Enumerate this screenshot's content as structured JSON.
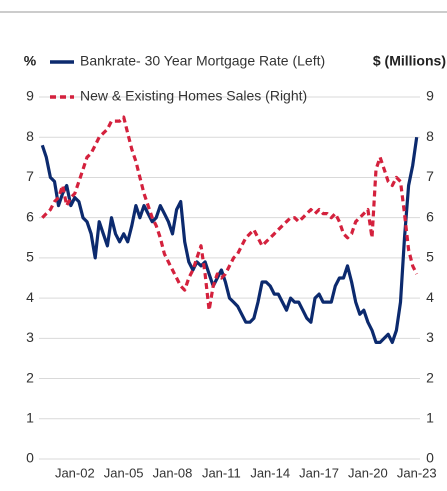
{
  "chart_data": {
    "type": "line",
    "y_label": "%",
    "y2_label": "$ (Millions)",
    "x": [
      2000,
      2000.25,
      2000.5,
      2000.75,
      2001,
      2001.25,
      2001.5,
      2001.75,
      2002,
      2002.25,
      2002.5,
      2002.75,
      2003,
      2003.25,
      2003.5,
      2003.75,
      2004,
      2004.25,
      2004.5,
      2004.75,
      2005,
      2005.25,
      2005.5,
      2005.75,
      2006,
      2006.25,
      2006.5,
      2006.75,
      2007,
      2007.25,
      2007.5,
      2007.75,
      2008,
      2008.25,
      2008.5,
      2008.75,
      2009,
      2009.25,
      2009.5,
      2009.75,
      2010,
      2010.25,
      2010.5,
      2010.75,
      2011,
      2011.25,
      2011.5,
      2011.75,
      2012,
      2012.25,
      2012.5,
      2012.75,
      2013,
      2013.25,
      2013.5,
      2013.75,
      2014,
      2014.25,
      2014.5,
      2014.75,
      2015,
      2015.25,
      2015.5,
      2015.75,
      2016,
      2016.25,
      2016.5,
      2016.75,
      2017,
      2017.25,
      2017.5,
      2017.75,
      2018,
      2018.25,
      2018.5,
      2018.75,
      2019,
      2019.25,
      2019.5,
      2019.75,
      2020,
      2020.25,
      2020.5,
      2020.75,
      2021,
      2021.25,
      2021.5,
      2021.75,
      2022,
      2022.25,
      2022.5,
      2022.75,
      2023
    ],
    "series": [
      {
        "name": "Bankrate- 30 Year Mortgage Rate (Left)",
        "color": "#0c2a6e",
        "axis": "y",
        "values": [
          7.8,
          7.5,
          7.0,
          6.9,
          6.3,
          6.6,
          6.8,
          6.3,
          6.5,
          6.4,
          6.0,
          5.9,
          5.6,
          5.0,
          5.9,
          5.6,
          5.3,
          6.0,
          5.6,
          5.4,
          5.6,
          5.4,
          5.8,
          6.3,
          6.0,
          6.3,
          6.1,
          5.9,
          6.0,
          6.3,
          6.1,
          5.9,
          5.6,
          6.2,
          6.4,
          5.4,
          4.9,
          4.7,
          4.9,
          4.8,
          4.9,
          4.6,
          4.3,
          4.5,
          4.7,
          4.4,
          4.0,
          3.9,
          3.8,
          3.6,
          3.4,
          3.4,
          3.5,
          3.9,
          4.4,
          4.4,
          4.3,
          4.1,
          4.1,
          3.9,
          3.7,
          4.0,
          3.9,
          3.9,
          3.7,
          3.5,
          3.4,
          4.0,
          4.1,
          3.9,
          3.9,
          3.9,
          4.3,
          4.5,
          4.5,
          4.8,
          4.4,
          3.9,
          3.6,
          3.7,
          3.4,
          3.2,
          2.9,
          2.9,
          3.0,
          3.1,
          2.9,
          3.2,
          3.9,
          5.5,
          6.8,
          7.3,
          8.0
        ]
      },
      {
        "name": "New & Existing Homes Sales (Right)",
        "color": "#d4213d",
        "axis": "y2",
        "dashed": true,
        "values": [
          6.0,
          6.1,
          6.2,
          6.4,
          6.5,
          6.8,
          6.3,
          6.5,
          6.6,
          6.9,
          7.2,
          7.5,
          7.6,
          7.8,
          8.0,
          8.1,
          8.2,
          8.4,
          8.4,
          8.4,
          8.5,
          8.1,
          7.7,
          7.4,
          7.0,
          6.6,
          6.3,
          6.0,
          5.8,
          5.5,
          5.1,
          4.9,
          4.7,
          4.5,
          4.3,
          4.2,
          4.5,
          4.7,
          5.0,
          5.3,
          4.6,
          3.7,
          4.3,
          4.6,
          4.5,
          4.6,
          4.8,
          5.0,
          5.1,
          5.3,
          5.5,
          5.6,
          5.7,
          5.5,
          5.3,
          5.4,
          5.5,
          5.6,
          5.7,
          5.8,
          5.9,
          6.0,
          6.0,
          5.9,
          6.0,
          6.1,
          6.2,
          6.1,
          6.2,
          6.1,
          6.1,
          6.0,
          6.1,
          5.9,
          5.6,
          5.5,
          5.6,
          5.9,
          6.0,
          6.1,
          6.2,
          5.5,
          7.2,
          7.5,
          7.2,
          6.9,
          6.8,
          7.0,
          6.9,
          6.1,
          5.2,
          4.8,
          4.6
        ]
      }
    ],
    "xlim": [
      1999.8,
      2023.2
    ],
    "xticks": [
      {
        "value": 2002,
        "label": "Jan-02"
      },
      {
        "value": 2005,
        "label": "Jan-05"
      },
      {
        "value": 2008,
        "label": "Jan-08"
      },
      {
        "value": 2011,
        "label": "Jan-11"
      },
      {
        "value": 2014,
        "label": "Jan-14"
      },
      {
        "value": 2017,
        "label": "Jan-17"
      },
      {
        "value": 2020,
        "label": "Jan-20"
      },
      {
        "value": 2023,
        "label": "Jan-23"
      }
    ],
    "ylim": [
      0,
      9
    ],
    "yticks": [
      0,
      1,
      2,
      3,
      4,
      5,
      6,
      7,
      8,
      9
    ],
    "y2lim": [
      0,
      9
    ],
    "y2ticks": [
      0,
      1,
      2,
      3,
      4,
      5,
      6,
      7,
      8,
      9
    ],
    "grid": true
  }
}
